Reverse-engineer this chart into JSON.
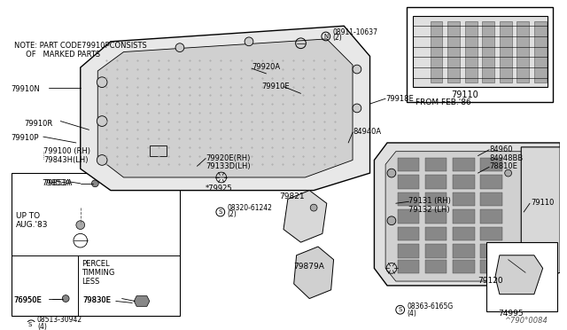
{
  "bg_color": "#ffffff",
  "line_color": "#000000",
  "text_color": "#000000",
  "gray_fill": "#d8d8d8",
  "light_fill": "#eeeeee",
  "note_line1": "NOTE: PART CODE79910PCONSISTS",
  "note_line2": "     OF   MARKED PARTS",
  "footer": "^790°0084",
  "from_feb86": "FROM FEB.'86",
  "label_79110_inset": "79110",
  "up_to": "UP TO\nAUG.'83",
  "percel": "PERCEL\nTIMMING\nLESS"
}
